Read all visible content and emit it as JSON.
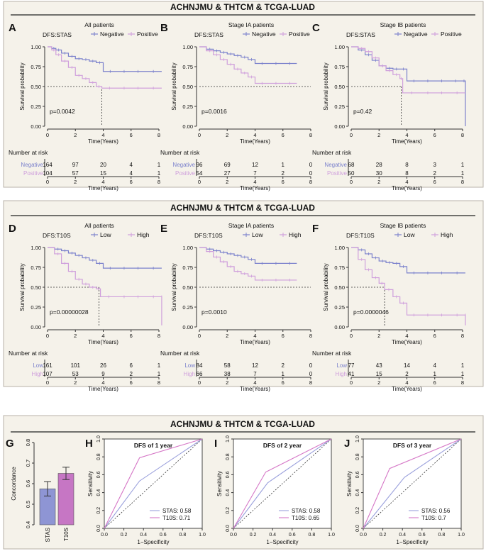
{
  "panel1": {
    "title": "ACHNJMU & THTCM & TCGA-LUAD",
    "legend_labels": [
      "Negative",
      "Positive"
    ],
    "charts": [
      {
        "letter": "A",
        "label": "DFS:STAS",
        "subtitle": "All patients",
        "pvalue": "p=0.0042",
        "median_x": 3.9,
        "chart_data": {
          "type": "line",
          "xlabel": "Time(Years)",
          "ylabel": "Survival probability",
          "xlim": [
            0,
            8
          ],
          "ylim": [
            0,
            1
          ],
          "x_ticks": [
            "0",
            "2",
            "4",
            "6",
            "8"
          ],
          "y_ticks": [
            "0.00",
            "0.25",
            "0.50",
            "0.75",
            "1.00"
          ],
          "series": [
            {
              "name": "Negative",
              "x": [
                0,
                0.3,
                0.6,
                1,
                1.5,
                2,
                2.5,
                3,
                3.5,
                4,
                5,
                6,
                7,
                8.2
              ],
              "y": [
                1,
                0.98,
                0.96,
                0.92,
                0.88,
                0.85,
                0.84,
                0.82,
                0.8,
                0.69,
                0.69,
                0.69,
                0.69,
                0.69
              ]
            },
            {
              "name": "Positive",
              "x": [
                0,
                0.3,
                0.6,
                1,
                1.5,
                2,
                2.5,
                3,
                3.5,
                3.9,
                5,
                6,
                7,
                8.2
              ],
              "y": [
                1,
                0.96,
                0.9,
                0.82,
                0.74,
                0.64,
                0.6,
                0.55,
                0.5,
                0.48,
                0.48,
                0.48,
                0.48,
                0.48
              ]
            }
          ]
        }
      },
      {
        "letter": "B",
        "label": "DFS:STAS",
        "subtitle": "Stage IA patients",
        "pvalue": "p=0.0016",
        "median_x": null,
        "chart_data": {
          "type": "line",
          "xlabel": "Time(Years)",
          "ylabel": "Survival probability",
          "xlim": [
            0,
            8
          ],
          "ylim": [
            0,
            1
          ],
          "x_ticks": [
            "0",
            "2",
            "4",
            "6",
            "8"
          ],
          "y_ticks": [
            "0.00",
            "0.25",
            "0.50",
            "0.75",
            "1.00"
          ],
          "series": [
            {
              "name": "Negative",
              "x": [
                0,
                0.5,
                1,
                1.5,
                2,
                2.5,
                3,
                3.5,
                4,
                5,
                6,
                7
              ],
              "y": [
                1,
                0.97,
                0.95,
                0.93,
                0.91,
                0.89,
                0.87,
                0.84,
                0.79,
                0.79,
                0.79,
                0.79
              ]
            },
            {
              "name": "Positive",
              "x": [
                0,
                0.5,
                1,
                1.5,
                2,
                2.5,
                3,
                3.5,
                4,
                5,
                6,
                7
              ],
              "y": [
                1,
                0.95,
                0.9,
                0.84,
                0.78,
                0.72,
                0.67,
                0.62,
                0.54,
                0.54,
                0.54,
                0.54
              ]
            }
          ]
        }
      },
      {
        "letter": "C",
        "label": "DFS:STAS",
        "subtitle": "Stage IB patients",
        "pvalue": "p=0.42",
        "median_x": 3.6,
        "chart_data": {
          "type": "line",
          "xlabel": "Time(Years)",
          "ylabel": "Survival probability",
          "xlim": [
            0,
            8
          ],
          "ylim": [
            0,
            1
          ],
          "x_ticks": [
            "0",
            "2",
            "4",
            "6",
            "8"
          ],
          "y_ticks": [
            "0.00",
            "0.25",
            "0.50",
            "0.75",
            "1.00"
          ],
          "series": [
            {
              "name": "Negative",
              "x": [
                0,
                0.5,
                1,
                1.5,
                2,
                2.5,
                3,
                3.5,
                4,
                5,
                6,
                7,
                8,
                8.2
              ],
              "y": [
                1,
                0.96,
                0.9,
                0.83,
                0.76,
                0.73,
                0.72,
                0.72,
                0.57,
                0.57,
                0.57,
                0.57,
                0.57,
                0
              ]
            },
            {
              "name": "Positive",
              "x": [
                0,
                0.5,
                1,
                1.5,
                2,
                2.5,
                3,
                3.5,
                3.7,
                5,
                6,
                7,
                8.2
              ],
              "y": [
                1,
                0.98,
                0.94,
                0.86,
                0.76,
                0.7,
                0.65,
                0.6,
                0.42,
                0.42,
                0.42,
                0.42,
                0.42
              ]
            }
          ]
        }
      }
    ],
    "risk_tables": [
      {
        "title": "Number at risk",
        "row_labels": [
          "Negative",
          "Positive"
        ],
        "rows": [
          [
            "164",
            "97",
            "20",
            "4",
            "1"
          ],
          [
            "104",
            "57",
            "15",
            "4",
            "1"
          ]
        ],
        "x_ticks": [
          "0",
          "2",
          "4",
          "6",
          "8"
        ],
        "xlabel": "Time(Years)"
      },
      {
        "title": "Number at risk",
        "row_labels": [
          "Negative",
          "Positive"
        ],
        "rows": [
          [
            "96",
            "69",
            "12",
            "1",
            "0"
          ],
          [
            "54",
            "27",
            "7",
            "2",
            "0"
          ]
        ],
        "x_ticks": [
          "0",
          "2",
          "4",
          "6",
          "8"
        ],
        "xlabel": "Time(Years)"
      },
      {
        "title": "Number at risk",
        "row_labels": [
          "Negative",
          "Positive"
        ],
        "rows": [
          [
            "68",
            "28",
            "8",
            "3",
            "1"
          ],
          [
            "50",
            "30",
            "8",
            "2",
            "1"
          ]
        ],
        "x_ticks": [
          "0",
          "2",
          "4",
          "6",
          "8"
        ],
        "xlabel": "Time(Years)"
      }
    ]
  },
  "panel2": {
    "title": "ACHNJMU & THTCM & TCGA-LUAD",
    "legend_labels": [
      "Low",
      "High"
    ],
    "charts": [
      {
        "letter": "D",
        "label": "DFS:T10S",
        "subtitle": "All patients",
        "pvalue": "p=0.00000028",
        "median_x": 3.7,
        "chart_data": {
          "type": "line",
          "xlabel": "Time(Years)",
          "ylabel": "Survival probability",
          "xlim": [
            0,
            8
          ],
          "ylim": [
            0,
            1
          ],
          "x_ticks": [
            "0",
            "2",
            "4",
            "6",
            "8"
          ],
          "y_ticks": [
            "0.00",
            "0.25",
            "0.50",
            "0.75",
            "1.00"
          ],
          "series": [
            {
              "name": "Low",
              "x": [
                0,
                0.5,
                1,
                1.5,
                2,
                2.5,
                3,
                3.5,
                4,
                5,
                6,
                7,
                8.2
              ],
              "y": [
                1,
                0.98,
                0.96,
                0.93,
                0.9,
                0.87,
                0.84,
                0.8,
                0.74,
                0.74,
                0.74,
                0.74,
                0.74
              ]
            },
            {
              "name": "High",
              "x": [
                0,
                0.5,
                1,
                1.5,
                2,
                2.5,
                3,
                3.5,
                3.8,
                5,
                6,
                7,
                8.2,
                8.2
              ],
              "y": [
                1,
                0.92,
                0.8,
                0.7,
                0.6,
                0.54,
                0.5,
                0.48,
                0.38,
                0.38,
                0.38,
                0.38,
                0.38,
                0.02
              ]
            }
          ]
        }
      },
      {
        "letter": "E",
        "label": "DFS:T10S",
        "subtitle": "Stage IA patients",
        "pvalue": "p=0.0010",
        "median_x": null,
        "chart_data": {
          "type": "line",
          "xlabel": "Time(Years)",
          "ylabel": "Survival probability",
          "xlim": [
            0,
            8
          ],
          "ylim": [
            0,
            1
          ],
          "x_ticks": [
            "0",
            "2",
            "4",
            "6",
            "8"
          ],
          "y_ticks": [
            "0.00",
            "0.25",
            "0.50",
            "0.75",
            "1.00"
          ],
          "series": [
            {
              "name": "Low",
              "x": [
                0,
                0.5,
                1,
                1.5,
                2,
                2.5,
                3,
                3.5,
                4,
                5,
                6,
                7
              ],
              "y": [
                1,
                0.98,
                0.96,
                0.94,
                0.92,
                0.9,
                0.88,
                0.85,
                0.8,
                0.8,
                0.8,
                0.8
              ]
            },
            {
              "name": "High",
              "x": [
                0,
                0.5,
                1,
                1.5,
                2,
                2.5,
                3,
                3.5,
                4,
                5,
                6,
                7
              ],
              "y": [
                1,
                0.95,
                0.88,
                0.82,
                0.76,
                0.7,
                0.67,
                0.64,
                0.59,
                0.59,
                0.59,
                0.59
              ]
            }
          ]
        }
      },
      {
        "letter": "F",
        "label": "DFS:T10S",
        "subtitle": "Stage IB patients",
        "pvalue": "p=0.0000046",
        "median_x": 2.4,
        "chart_data": {
          "type": "line",
          "xlabel": "Time(Years)",
          "ylabel": "Survival probability",
          "xlim": [
            0,
            8
          ],
          "ylim": [
            0,
            1
          ],
          "x_ticks": [
            "0",
            "2",
            "4",
            "6",
            "8"
          ],
          "y_ticks": [
            "0.00",
            "0.25",
            "0.50",
            "0.75",
            "1.00"
          ],
          "series": [
            {
              "name": "Low",
              "x": [
                0,
                0.5,
                1,
                1.5,
                2,
                2.5,
                3,
                3.5,
                4,
                5,
                6,
                7,
                8.2
              ],
              "y": [
                1,
                0.97,
                0.92,
                0.87,
                0.83,
                0.81,
                0.8,
                0.76,
                0.68,
                0.68,
                0.68,
                0.68,
                0.68
              ]
            },
            {
              "name": "High",
              "x": [
                0,
                0.5,
                1,
                1.5,
                2,
                2.4,
                3,
                3.5,
                4,
                5,
                6,
                7,
                8.2,
                8.2
              ],
              "y": [
                1,
                0.85,
                0.72,
                0.62,
                0.55,
                0.47,
                0.38,
                0.3,
                0.15,
                0.15,
                0.15,
                0.15,
                0.15,
                0.02
              ]
            }
          ]
        }
      }
    ],
    "risk_tables": [
      {
        "title": "Number at risk",
        "row_labels": [
          "Low",
          "High"
        ],
        "rows": [
          [
            "161",
            "101",
            "26",
            "6",
            "1"
          ],
          [
            "107",
            "53",
            "9",
            "2",
            "1"
          ]
        ],
        "x_ticks": [
          "0",
          "2",
          "4",
          "6",
          "8"
        ],
        "xlabel": "Time(Years)"
      },
      {
        "title": "Number at risk",
        "row_labels": [
          "Low",
          "High"
        ],
        "rows": [
          [
            "84",
            "58",
            "12",
            "2",
            "0"
          ],
          [
            "66",
            "38",
            "7",
            "1",
            "0"
          ]
        ],
        "x_ticks": [
          "0",
          "2",
          "4",
          "6",
          "8"
        ],
        "xlabel": "Time(Years)"
      },
      {
        "title": "Number at risk",
        "row_labels": [
          "Low",
          "High"
        ],
        "rows": [
          [
            "77",
            "43",
            "14",
            "4",
            "1"
          ],
          [
            "41",
            "15",
            "2",
            "1",
            "1"
          ]
        ],
        "x_ticks": [
          "0",
          "2",
          "4",
          "6",
          "8"
        ],
        "xlabel": "Time(Years)"
      }
    ]
  },
  "panel3": {
    "title": "ACHNJMU & THTCM & TCGA-LUAD",
    "bar": {
      "letter": "G",
      "chart_data": {
        "type": "bar",
        "ylabel": "Concordance",
        "categories": [
          "STAS",
          "T10S"
        ],
        "values": [
          0.575,
          0.65
        ],
        "errors": [
          0.035,
          0.03
        ],
        "ylim": [
          0.4,
          0.8
        ],
        "y_ticks": [
          "0.4",
          "0.5",
          "0.6",
          "0.7",
          "0.8"
        ],
        "colors": [
          "#8e95d4",
          "#c676c4"
        ]
      }
    },
    "rocs": [
      {
        "letter": "H",
        "title": "DFS of 1 year",
        "chart_data": {
          "type": "line",
          "xlabel": "1−Specificity",
          "ylabel": "Sensitivity",
          "xlim": [
            0,
            1
          ],
          "ylim": [
            0,
            1
          ],
          "ticks": [
            "0.0",
            "0.2",
            "0.4",
            "0.6",
            "0.8",
            "1.0"
          ],
          "series": [
            {
              "name": "STAS",
              "auc": "STAS: 0.58",
              "x": [
                0,
                0.36,
                1
              ],
              "y": [
                0,
                0.53,
                1
              ]
            },
            {
              "name": "T10S",
              "auc": "T10S: 0.71",
              "x": [
                0,
                0.36,
                1
              ],
              "y": [
                0,
                0.79,
                1
              ]
            }
          ]
        }
      },
      {
        "letter": "I",
        "title": "DFS of 2 year",
        "chart_data": {
          "type": "line",
          "xlabel": "1−Specificity",
          "ylabel": "Sensitivity",
          "xlim": [
            0,
            1
          ],
          "ylim": [
            0,
            1
          ],
          "ticks": [
            "0.0",
            "0.2",
            "0.4",
            "0.6",
            "0.8",
            "1.0"
          ],
          "series": [
            {
              "name": "STAS",
              "auc": "STAS: 0.58",
              "x": [
                0,
                0.35,
                1
              ],
              "y": [
                0,
                0.51,
                1
              ]
            },
            {
              "name": "T10S",
              "auc": "T10S: 0.65",
              "x": [
                0,
                0.33,
                1
              ],
              "y": [
                0,
                0.63,
                1
              ]
            }
          ]
        }
      },
      {
        "letter": "J",
        "title": "DFS of 3 year",
        "chart_data": {
          "type": "line",
          "xlabel": "1−Specificity",
          "ylabel": "Sensitivity",
          "xlim": [
            0,
            1
          ],
          "ylim": [
            0,
            1
          ],
          "ticks": [
            "0.0",
            "0.2",
            "0.4",
            "0.6",
            "0.8",
            "1.0"
          ],
          "series": [
            {
              "name": "STAS",
              "auc": "STAS: 0.56",
              "x": [
                0,
                0.42,
                1
              ],
              "y": [
                0,
                0.57,
                1
              ]
            },
            {
              "name": "T10S",
              "auc": "T10S: 0.7",
              "x": [
                0,
                0.27,
                1
              ],
              "y": [
                0,
                0.67,
                1
              ]
            }
          ]
        }
      }
    ]
  },
  "colors": {
    "blue": "#7b81cc",
    "pink": "#cf9fdc",
    "roc_blue": "#9aa0dc",
    "roc_pink": "#d576c6",
    "panel_bg": "#f5f2ea",
    "panel_border": "#b8b2a8"
  }
}
